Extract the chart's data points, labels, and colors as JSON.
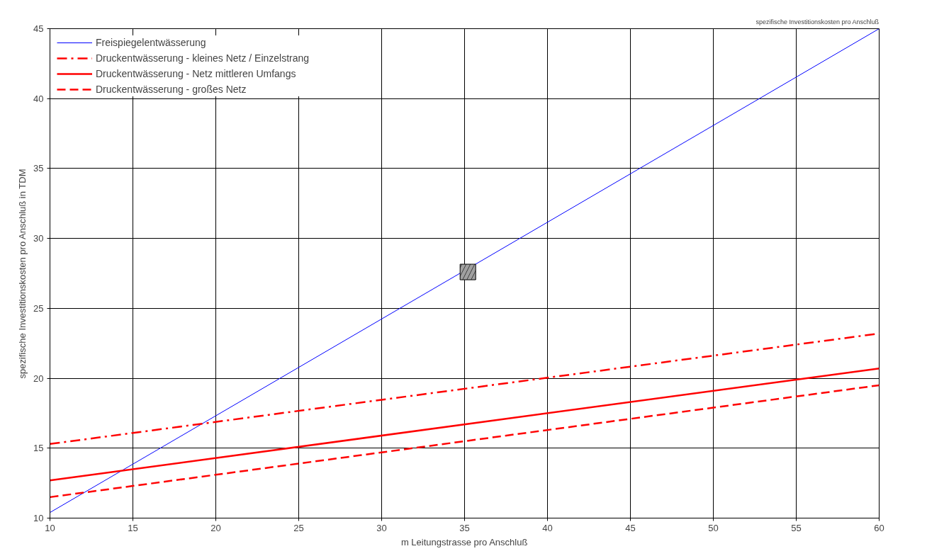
{
  "chart_data": {
    "type": "line",
    "title": "spezifische Investitionskosten pro Anschluß",
    "xlabel": "m Leitungstrasse pro Anschluß",
    "ylabel": "spezifische Investitionskosten pro Anschluß in TDM",
    "xlim": [
      10,
      60
    ],
    "ylim": [
      10,
      45
    ],
    "xticks": [
      10,
      15,
      20,
      25,
      30,
      35,
      40,
      45,
      50,
      55,
      60
    ],
    "yticks": [
      10,
      15,
      20,
      25,
      30,
      35,
      40,
      45
    ],
    "grid": true,
    "legend": "top left",
    "series": [
      {
        "name": "Freispiegelentwässerung",
        "color": "#0000ff",
        "x": [
          10,
          60
        ],
        "values": [
          10.4,
          45
        ],
        "line_style": "solid"
      },
      {
        "name": "Druckentwässerung - kleines Netz / Einzelstrang",
        "color": "#ff0000",
        "x": [
          10,
          60
        ],
        "values": [
          15.3,
          23.2
        ],
        "line_style": "dashdot"
      },
      {
        "name": "Druckentwässerung - Netz mittleren Umfangs",
        "color": "#ff0000",
        "x": [
          10,
          60
        ],
        "values": [
          12.7,
          20.7
        ],
        "line_style": "solid"
      },
      {
        "name": "Druckentwässerung - großes Netz",
        "color": "#ff0000",
        "x": [
          10,
          60
        ],
        "values": [
          11.5,
          19.5
        ],
        "line_style": "dashed"
      },
      {
        "type": "scatter",
        "color": "#a0a0a0",
        "x": [
          35.2
        ],
        "values": [
          27.6
        ],
        "marker": "square"
      }
    ]
  }
}
